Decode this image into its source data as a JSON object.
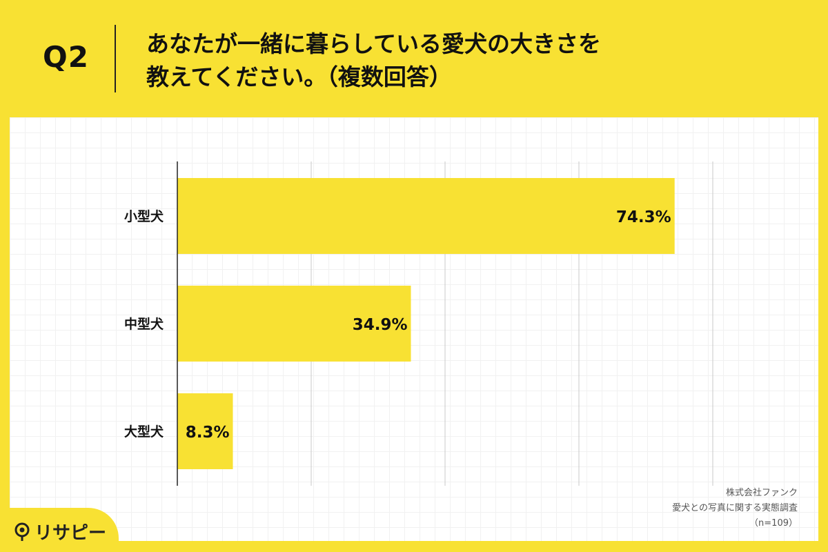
{
  "header": {
    "q_label": "Q2",
    "title_line1": "あなたが一緒に暮らしている愛犬の大きさを",
    "title_line2": "教えてください。（複数回答）"
  },
  "source": {
    "line1": "株式会社ファンク",
    "line2": "愛犬との写真に関する実態調査",
    "line3": "（n=109）"
  },
  "logo": {
    "text": "リサピー",
    "icon": "pin-icon"
  },
  "colors": {
    "background": "#f8e133",
    "bar": "#f8e133",
    "panel": "#ffffff"
  },
  "chart_data": {
    "type": "bar",
    "orientation": "horizontal",
    "categories": [
      "小型犬",
      "中型犬",
      "大型犬"
    ],
    "values": [
      74.3,
      34.9,
      8.3
    ],
    "value_labels": [
      "74.3%",
      "34.9%",
      "8.3%"
    ],
    "xlim": [
      0,
      100
    ],
    "grid": true,
    "title": "",
    "xlabel": "",
    "ylabel": ""
  }
}
